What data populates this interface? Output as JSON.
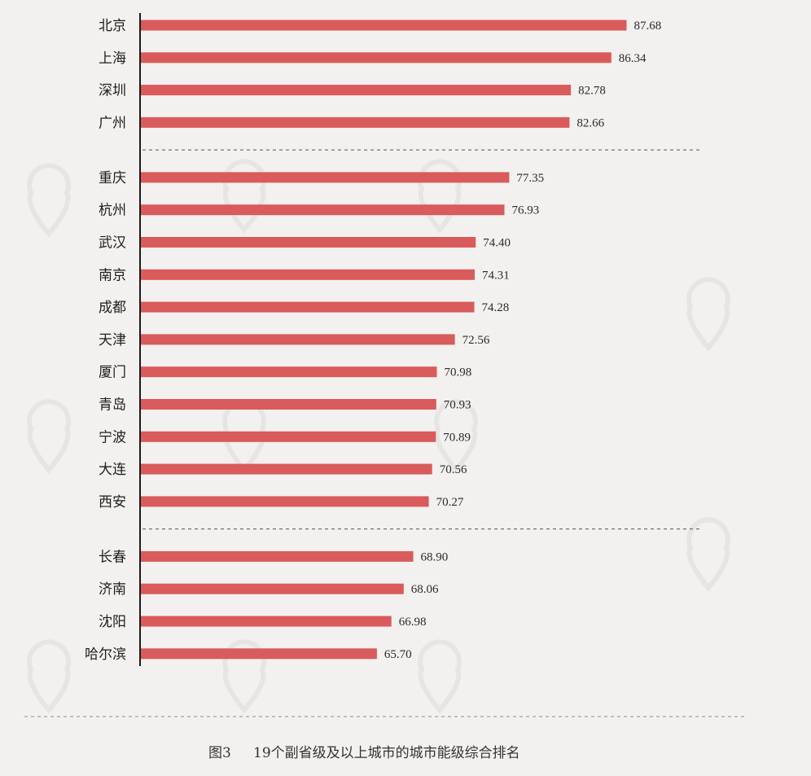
{
  "chart_data": {
    "type": "bar",
    "orientation": "horizontal",
    "title": "图3　19个副省级及以上城市的城市能级综合排名",
    "xlabel": "",
    "ylabel": "",
    "categories": [
      "北京",
      "上海",
      "深圳",
      "广州",
      "重庆",
      "杭州",
      "武汉",
      "南京",
      "成都",
      "天津",
      "厦门",
      "青岛",
      "宁波",
      "大连",
      "西安",
      "长春",
      "济南",
      "沈阳",
      "哈尔滨"
    ],
    "values": [
      87.68,
      86.34,
      82.78,
      82.66,
      77.35,
      76.93,
      74.4,
      74.31,
      74.28,
      72.56,
      70.98,
      70.93,
      70.89,
      70.56,
      70.27,
      68.9,
      68.06,
      66.98,
      65.7
    ],
    "value_labels": [
      "87.68",
      "86.34",
      "82.78",
      "82.66",
      "77.35",
      "76.93",
      "74.40",
      "74.31",
      "74.28",
      "72.56",
      "70.98",
      "70.93",
      "70.89",
      "70.56",
      "70.27",
      "68.90",
      "68.06",
      "66.98",
      "65.70"
    ],
    "groups": [
      4,
      11,
      4
    ],
    "xlim": [
      44.85,
      91.5
    ],
    "grid": false,
    "legend": "none",
    "bar_color": "#d95b5b",
    "caption_prefix": "图3",
    "caption_text": "19个副省级及以上城市的城市能级综合排名"
  }
}
